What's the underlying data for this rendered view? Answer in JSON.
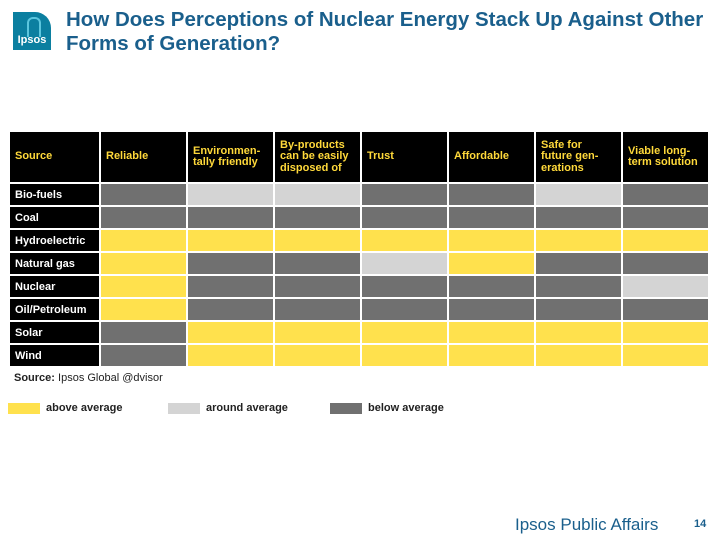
{
  "header": {
    "logo_text": "Ipsos",
    "title": "How Does Perceptions of Nuclear Energy Stack Up Against Other Forms of Generation?"
  },
  "chart_data": {
    "type": "table",
    "title": "How Does Perceptions of Nuclear Energy Stack Up Against Other Forms of Generation?",
    "columns": [
      "Source",
      "Reliable",
      "Environmen-tally friendly",
      "By-products can be easily disposed of",
      "Trust",
      "Affordable",
      "Safe for future gen-erations",
      "Viable long-term solution"
    ],
    "rows": [
      {
        "source": "Bio-fuels",
        "ratings": [
          "below",
          "around",
          "around",
          "below",
          "below",
          "around",
          "below"
        ]
      },
      {
        "source": "Coal",
        "ratings": [
          "below",
          "below",
          "below",
          "below",
          "below",
          "below",
          "below"
        ]
      },
      {
        "source": "Hydroelectric",
        "ratings": [
          "above",
          "above",
          "above",
          "above",
          "above",
          "above",
          "above"
        ]
      },
      {
        "source": "Natural gas",
        "ratings": [
          "above",
          "below",
          "below",
          "around",
          "above",
          "below",
          "below"
        ]
      },
      {
        "source": "Nuclear",
        "ratings": [
          "above",
          "below",
          "below",
          "below",
          "below",
          "below",
          "around"
        ]
      },
      {
        "source": "Oil/Petroleum",
        "ratings": [
          "above",
          "below",
          "below",
          "below",
          "below",
          "below",
          "below"
        ]
      },
      {
        "source": "Solar",
        "ratings": [
          "below",
          "above",
          "above",
          "above",
          "above",
          "above",
          "above"
        ]
      },
      {
        "source": "Wind",
        "ratings": [
          "below",
          "above",
          "above",
          "above",
          "above",
          "above",
          "above"
        ]
      }
    ],
    "legend": [
      {
        "key": "above",
        "label": "above average",
        "color": "#ffe14d"
      },
      {
        "key": "around",
        "label": "around average",
        "color": "#d4d4d4"
      },
      {
        "key": "below",
        "label": "below average",
        "color": "#707070"
      }
    ]
  },
  "source_note": {
    "label": "Source:",
    "text": "Ipsos Global @dvisor"
  },
  "footer": {
    "brand": "Ipsos Public Affairs",
    "page_number": "14"
  }
}
